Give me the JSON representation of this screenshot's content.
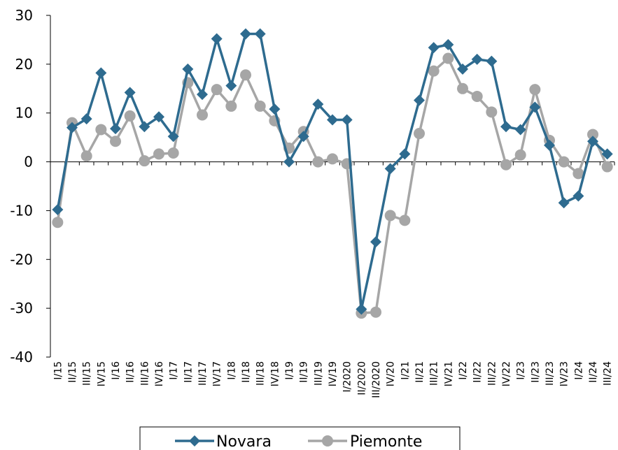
{
  "chart_data": {
    "type": "line",
    "title": "",
    "xlabel": "",
    "ylabel": "",
    "ylim": [
      -40,
      30
    ],
    "yticks": [
      30,
      20,
      10,
      0,
      -10,
      -20,
      -30,
      -40
    ],
    "grid": false,
    "legend_position": "bottom",
    "categories": [
      "I/15",
      "II/15",
      "III/15",
      "IV/15",
      "I/16",
      "II/16",
      "III/16",
      "IV/16",
      "I/17",
      "II/17",
      "III/17",
      "IV/17",
      "I/18",
      "II/18",
      "III/18",
      "IV/18",
      "I/19",
      "II/19",
      "III/19",
      "IV/19",
      "I/2020",
      "II/2020",
      "III/2020",
      "IV/20",
      "I/21",
      "II/21",
      "III/21",
      "IV/21",
      "I/22",
      "II/22",
      "III/22",
      "IV/22",
      "I/23",
      "II/23",
      "III/23",
      "IV/23",
      "I/24",
      "II/24",
      "III/24"
    ],
    "series": [
      {
        "name": "Novara",
        "color": "#2e6b8f",
        "marker": "diamond",
        "values": [
          -9.8,
          7.0,
          8.8,
          18.2,
          6.8,
          14.2,
          7.2,
          9.2,
          5.2,
          19.0,
          13.8,
          25.2,
          15.6,
          26.2,
          26.2,
          10.8,
          0.0,
          5.2,
          11.8,
          8.6,
          8.6,
          -30.2,
          -16.4,
          -1.4,
          1.6,
          12.6,
          23.4,
          24.0,
          19.0,
          21.0,
          20.6,
          7.2,
          6.6,
          11.2,
          3.4,
          -8.4,
          -7.0,
          4.2,
          1.6
        ]
      },
      {
        "name": "Piemonte",
        "color": "#a6a6a6",
        "marker": "circle",
        "values": [
          -12.4,
          8.0,
          1.2,
          6.6,
          4.2,
          9.4,
          0.2,
          1.6,
          1.8,
          16.2,
          9.6,
          14.8,
          11.4,
          17.8,
          11.4,
          8.4,
          2.8,
          6.2,
          0.0,
          0.6,
          -0.4,
          -31.0,
          -30.8,
          -11.0,
          -12.0,
          5.8,
          18.6,
          21.2,
          15.0,
          13.4,
          10.2,
          -0.6,
          1.4,
          14.8,
          4.4,
          0.0,
          -2.4,
          5.6,
          -1.0
        ]
      }
    ]
  }
}
